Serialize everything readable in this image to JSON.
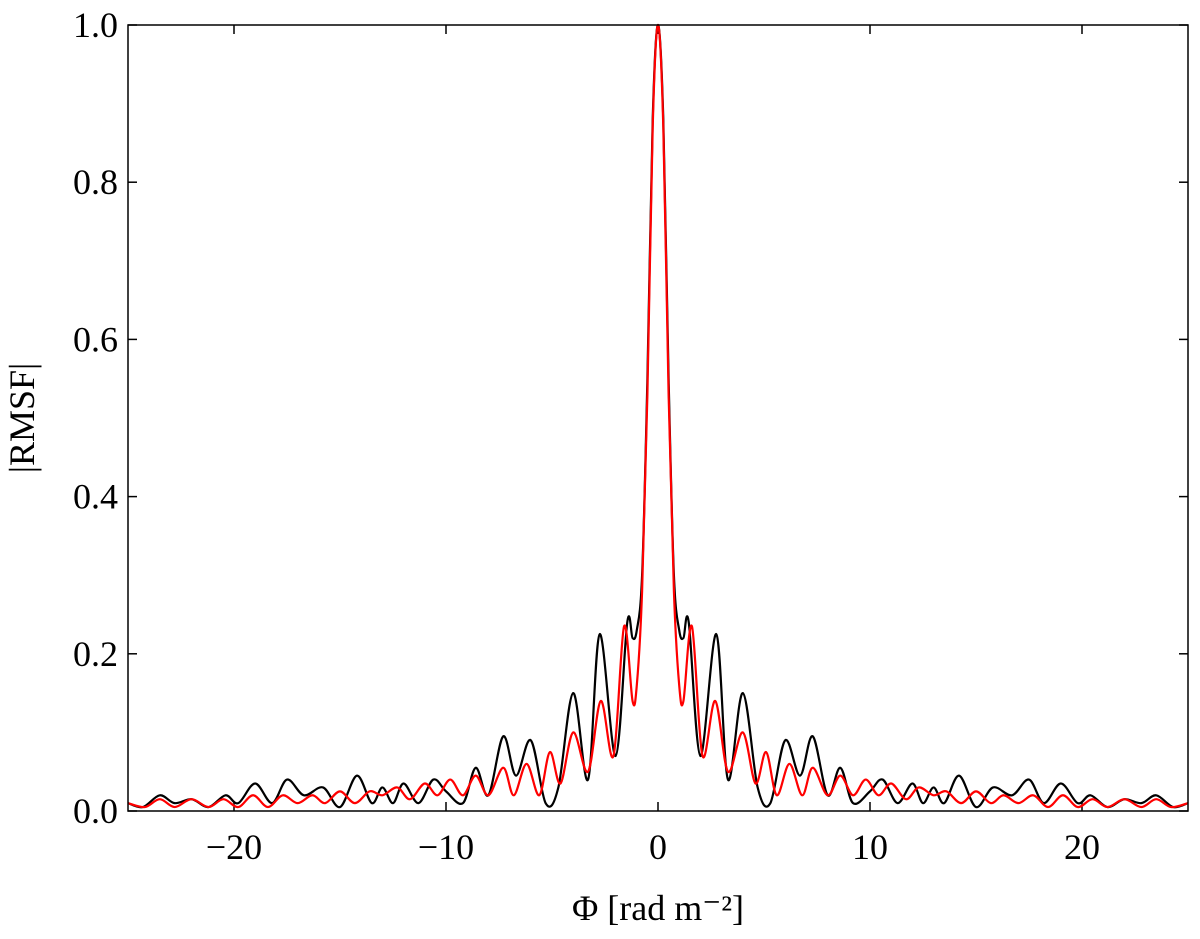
{
  "chart_data": {
    "type": "line",
    "xlabel": "Φ [rad m⁻²]",
    "ylabel": "|RMSF|",
    "xlim": [
      -25,
      25
    ],
    "ylim": [
      0,
      1
    ],
    "xticks": [
      {
        "value": -20,
        "label": "−20"
      },
      {
        "value": -10,
        "label": "−10"
      },
      0,
      10,
      20
    ],
    "yticks": [
      {
        "value": 0,
        "label": "0.0"
      },
      {
        "value": 0.2,
        "label": "0.2"
      },
      {
        "value": 0.4,
        "label": "0.4"
      },
      {
        "value": 0.6,
        "label": "0.6"
      },
      {
        "value": 0.8,
        "label": "0.8"
      },
      {
        "value": 1,
        "label": "1.0"
      }
    ],
    "grid": false,
    "series": [
      {
        "color": "#000000",
        "x": [
          -25,
          -24.3,
          -23.5,
          -22.8,
          -22,
          -21.2,
          -20.4,
          -19.8,
          -19,
          -18.2,
          -17.5,
          -16.7,
          -15.8,
          -15,
          -14.2,
          -13.5,
          -13,
          -12.5,
          -12,
          -11.3,
          -10.6,
          -10,
          -9.2,
          -8.6,
          -8,
          -7.3,
          -6.7,
          -6,
          -5.3,
          -4.7,
          -4,
          -3.3,
          -2.75,
          -2,
          -1.45,
          -1.2,
          -1,
          -0.75,
          -0.5,
          -0.25,
          0,
          0.25,
          0.5,
          0.75,
          1,
          1.2,
          1.45,
          2,
          2.75,
          3.3,
          4,
          4.7,
          5.3,
          6,
          6.7,
          7.3,
          8,
          8.6,
          9.2,
          10,
          10.6,
          11.3,
          12,
          12.5,
          13,
          13.5,
          14.2,
          15,
          15.8,
          16.7,
          17.5,
          18.2,
          19,
          19.8,
          20.4,
          21.2,
          22,
          22.8,
          23.5,
          24.3,
          25
        ],
        "values": [
          0.01,
          0.005,
          0.02,
          0.01,
          0.015,
          0.005,
          0.02,
          0.01,
          0.035,
          0.01,
          0.04,
          0.02,
          0.03,
          0.005,
          0.045,
          0.01,
          0.03,
          0.01,
          0.035,
          0.01,
          0.04,
          0.025,
          0.01,
          0.055,
          0.02,
          0.095,
          0.045,
          0.09,
          0.01,
          0.03,
          0.15,
          0.04,
          0.225,
          0.07,
          0.24,
          0.22,
          0.23,
          0.3,
          0.55,
          0.88,
          1,
          0.88,
          0.55,
          0.3,
          0.23,
          0.22,
          0.24,
          0.07,
          0.225,
          0.04,
          0.15,
          0.03,
          0.01,
          0.09,
          0.045,
          0.095,
          0.02,
          0.055,
          0.01,
          0.025,
          0.04,
          0.01,
          0.035,
          0.01,
          0.03,
          0.01,
          0.045,
          0.005,
          0.03,
          0.02,
          0.04,
          0.01,
          0.035,
          0.01,
          0.02,
          0.005,
          0.015,
          0.01,
          0.02,
          0.005,
          0.01
        ]
      },
      {
        "color": "#ff0000",
        "x": [
          -25,
          -24.2,
          -23.5,
          -22.8,
          -22,
          -21.2,
          -20.5,
          -19.8,
          -19.1,
          -18.4,
          -17.7,
          -17,
          -16.3,
          -15.7,
          -15,
          -14.3,
          -13.6,
          -13,
          -12.3,
          -11.7,
          -11,
          -10.4,
          -9.8,
          -9.2,
          -8.6,
          -8,
          -7.3,
          -6.8,
          -6.2,
          -5.6,
          -5.1,
          -4.6,
          -4,
          -3.3,
          -2.7,
          -2.1,
          -1.6,
          -1.2,
          -1,
          -0.75,
          -0.5,
          -0.25,
          0,
          0.25,
          0.5,
          0.75,
          1,
          1.2,
          1.6,
          2.1,
          2.7,
          3.3,
          4,
          4.6,
          5.1,
          5.6,
          6.2,
          6.8,
          7.3,
          8,
          8.6,
          9.2,
          9.8,
          10.4,
          11,
          11.7,
          12.3,
          13,
          13.6,
          14.3,
          15,
          15.7,
          16.3,
          17,
          17.7,
          18.4,
          19.1,
          19.8,
          20.5,
          21.2,
          22,
          22.8,
          23.5,
          24.2,
          25
        ],
        "values": [
          0.01,
          0.005,
          0.015,
          0.005,
          0.015,
          0.005,
          0.015,
          0.005,
          0.02,
          0.005,
          0.02,
          0.01,
          0.02,
          0.01,
          0.025,
          0.01,
          0.025,
          0.02,
          0.03,
          0.015,
          0.035,
          0.02,
          0.04,
          0.02,
          0.045,
          0.02,
          0.055,
          0.02,
          0.06,
          0.02,
          0.075,
          0.035,
          0.1,
          0.05,
          0.14,
          0.07,
          0.235,
          0.14,
          0.16,
          0.28,
          0.53,
          0.87,
          1,
          0.87,
          0.53,
          0.28,
          0.16,
          0.14,
          0.235,
          0.07,
          0.14,
          0.05,
          0.1,
          0.035,
          0.075,
          0.02,
          0.06,
          0.02,
          0.055,
          0.02,
          0.045,
          0.02,
          0.04,
          0.02,
          0.035,
          0.015,
          0.03,
          0.02,
          0.025,
          0.01,
          0.025,
          0.01,
          0.02,
          0.01,
          0.02,
          0.005,
          0.02,
          0.005,
          0.015,
          0.005,
          0.015,
          0.005,
          0.015,
          0.005,
          0.01
        ]
      }
    ]
  }
}
